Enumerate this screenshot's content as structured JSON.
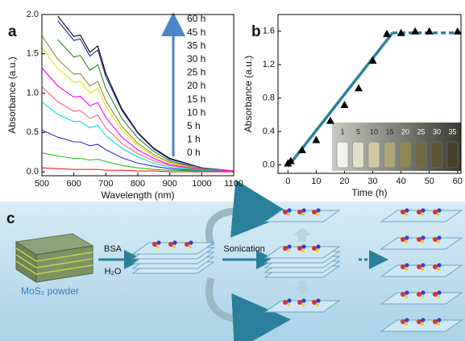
{
  "chart_data": [
    {
      "type": "line",
      "panel": "a",
      "xlabel": "Wavelength (nm)",
      "ylabel": "Absorbance (a.u.)",
      "x": [
        500,
        550,
        600,
        620,
        650,
        675,
        700,
        750,
        800,
        850,
        900,
        1000,
        1100
      ],
      "xlim": [
        500,
        1100
      ],
      "xticks": [
        500,
        600,
        700,
        800,
        900,
        1000,
        1100
      ],
      "ylim": [
        -0.05,
        2.0
      ],
      "yticks": [
        {
          "value": 0,
          "label": "0.0"
        },
        {
          "value": 0.5,
          "label": "0.5"
        },
        {
          "value": 1,
          "label": "1.0"
        },
        {
          "value": 1.5,
          "label": "1.5"
        },
        {
          "value": 2,
          "label": "2.0"
        }
      ],
      "series": [
        {
          "name": "60 h",
          "color": "#000000",
          "values": [
            null,
            1.98,
            1.72,
            1.74,
            1.52,
            1.6,
            1.25,
            0.8,
            0.5,
            0.3,
            0.17,
            0.05,
            0.01
          ]
        },
        {
          "name": "45 h",
          "color": "#2020a0",
          "values": [
            null,
            1.92,
            1.67,
            1.69,
            1.47,
            1.55,
            1.21,
            0.78,
            0.49,
            0.29,
            0.16,
            0.05,
            0.01
          ]
        },
        {
          "name": "35 h",
          "color": "#2f7f2f",
          "values": [
            null,
            1.68,
            1.46,
            1.48,
            1.29,
            1.36,
            1.06,
            0.68,
            0.43,
            0.26,
            0.14,
            0.04,
            0.01
          ]
        },
        {
          "name": "30 h",
          "color": "#8b8b3a",
          "values": [
            1.73,
            1.43,
            1.24,
            1.25,
            1.09,
            1.15,
            0.9,
            0.58,
            0.36,
            0.22,
            0.12,
            0.04,
            0.01
          ]
        },
        {
          "name": "25 h",
          "color": "#e6e600",
          "values": [
            1.58,
            1.31,
            1.14,
            1.15,
            1.0,
            1.06,
            0.83,
            0.53,
            0.33,
            0.2,
            0.11,
            0.03,
            0.01
          ]
        },
        {
          "name": "20 h",
          "color": "#ff00ff",
          "values": [
            1.32,
            1.09,
            0.95,
            0.96,
            0.84,
            0.88,
            0.69,
            0.44,
            0.28,
            0.17,
            0.09,
            0.03,
            0.01
          ]
        },
        {
          "name": "15 h",
          "color": "#f06080",
          "values": [
            1.08,
            0.89,
            0.77,
            0.78,
            0.68,
            0.72,
            0.56,
            0.36,
            0.23,
            0.14,
            0.08,
            0.02,
            0
          ]
        },
        {
          "name": "10 h",
          "color": "#00dede",
          "values": [
            0.89,
            0.73,
            0.64,
            0.64,
            0.56,
            0.59,
            0.46,
            0.3,
            0.19,
            0.11,
            0.06,
            0.02,
            0
          ]
        },
        {
          "name": "5 h",
          "color": "#3030c0",
          "values": [
            0.53,
            0.44,
            0.38,
            0.38,
            0.33,
            0.35,
            0.28,
            0.18,
            0.11,
            0.07,
            0.04,
            0.01,
            0
          ]
        },
        {
          "name": "1 h",
          "color": "#20c020",
          "values": [
            0.24,
            0.2,
            0.17,
            0.17,
            0.15,
            0.16,
            0.13,
            0.08,
            0.05,
            0.03,
            0.02,
            0.01,
            0
          ]
        },
        {
          "name": "0 h",
          "color": "#ff2020",
          "values": [
            0.05,
            0.04,
            0.03,
            0.03,
            0.03,
            0.03,
            0.02,
            0.02,
            0.01,
            0.01,
            0,
            0,
            0
          ]
        }
      ]
    },
    {
      "type": "scatter",
      "panel": "b",
      "xlabel": "Time (h)",
      "ylabel": "Absorbance (a.u.)",
      "x": [
        0,
        1,
        5,
        10,
        15,
        20,
        25,
        30,
        35,
        40,
        45,
        50,
        60
      ],
      "values": [
        0.02,
        0.05,
        0.18,
        0.3,
        0.53,
        0.72,
        0.92,
        1.25,
        1.57,
        1.58,
        1.6,
        1.6,
        1.6
      ],
      "color": "#000000",
      "fit": {
        "x": [
          0,
          37,
          60
        ],
        "y": [
          -0.02,
          1.58,
          1.58
        ],
        "color": "#2a7f9a"
      },
      "xlim": [
        -3.5,
        61.2
      ],
      "xticks": [
        0,
        10,
        20,
        30,
        40,
        50,
        60
      ],
      "ylim": [
        -0.1,
        1.8
      ],
      "yticks": [
        {
          "value": 0,
          "label": "0.0"
        },
        {
          "value": 0.4,
          "label": "0.4"
        },
        {
          "value": 0.8,
          "label": "0.8"
        },
        {
          "value": 1.2,
          "label": "1.2"
        },
        {
          "value": 1.6,
          "label": "1.6"
        }
      ],
      "inset_labels": [
        "1",
        "5",
        "10",
        "15",
        "20",
        "25",
        "30",
        "35"
      ]
    }
  ],
  "diagram": {
    "panel": "c",
    "powder_label": "MoS₂ powder",
    "reagent_top": "BSA",
    "reagent_bottom": "H₂O",
    "process": "Sonication"
  }
}
